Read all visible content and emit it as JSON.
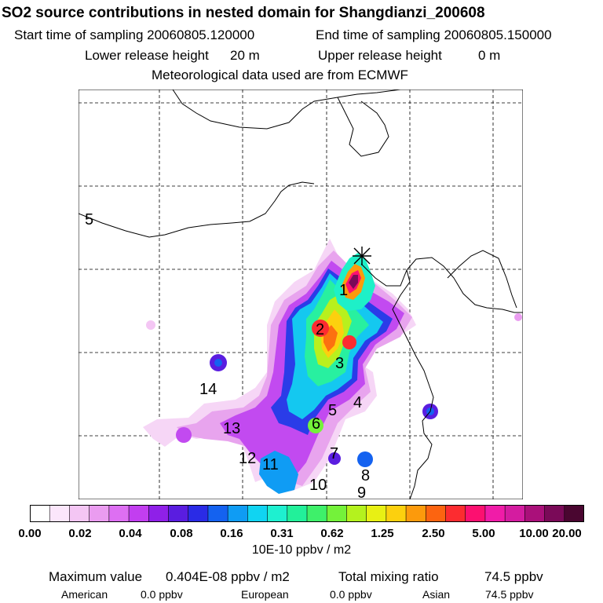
{
  "header": {
    "title": "SO2 source contributions in nested domain for Shangdianzi_200608",
    "start_label": "Start time of sampling 20060805.120000",
    "end_label": "End time of sampling 20060805.150000",
    "lower_label": "Lower release height",
    "lower_value": "20 m",
    "upper_label": "Upper release height",
    "upper_value": "0 m",
    "met_label": "Meteorological data used are from ECMWF"
  },
  "map": {
    "region_labels": [
      "1",
      "2",
      "3",
      "4",
      "5",
      "6",
      "7",
      "8",
      "9",
      "10",
      "11",
      "12",
      "13",
      "14",
      "5"
    ],
    "receptor_symbol": "star"
  },
  "colorbar": {
    "colors": [
      "#ffffff",
      "#fbe6fb",
      "#f4c6f4",
      "#ea9cf0",
      "#dd6ff2",
      "#c23ef0",
      "#8f20e8",
      "#5a1de0",
      "#2a2be6",
      "#1462f0",
      "#0f9cf4",
      "#10d4f2",
      "#1ef0d0",
      "#22f09a",
      "#3ef06a",
      "#74f23a",
      "#b4f21e",
      "#e8f014",
      "#fcd00e",
      "#fc9a0c",
      "#fc6410",
      "#fc2c30",
      "#fc1070",
      "#f01ca8",
      "#d41ca0",
      "#aa107a",
      "#7a0a58",
      "#4a0630"
    ],
    "tick_labels": [
      "0.00",
      "0.02",
      "0.04",
      "0.08",
      "0.16",
      "0.31",
      "0.62",
      "1.25",
      "2.50",
      "5.00",
      "10.00",
      "20.00"
    ],
    "unit": "10E-10 ppbv / m2"
  },
  "footer": {
    "max_label": "Maximum value",
    "max_value": "0.404E-08 ppbv / m2",
    "total_label": "Total mixing ratio",
    "total_value": "74.5 ppbv",
    "american_label": "American",
    "american_value": "0.0 ppbv",
    "european_label": "European",
    "european_value": "0.0 ppbv",
    "asian_label": "Asian",
    "asian_value": "74.5 ppbv"
  }
}
